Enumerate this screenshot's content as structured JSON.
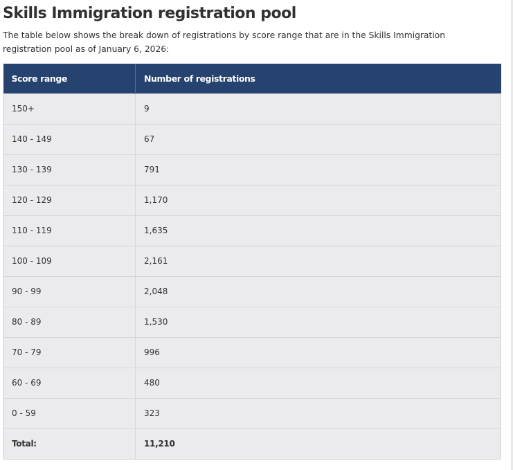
{
  "heading": "Skills Immigration registration pool",
  "intro": "The table below shows the break down of registrations by score range that are in the Skills Immigration registration pool as of January 6, 2026:",
  "table": {
    "headers": [
      "Score range",
      "Number of registrations"
    ],
    "rows": [
      [
        "150+",
        "9"
      ],
      [
        "140 - 149",
        "67"
      ],
      [
        "130 - 139",
        "791"
      ],
      [
        "120 - 129",
        "1,170"
      ],
      [
        "110 - 119",
        "1,635"
      ],
      [
        "100 - 109",
        "2,161"
      ],
      [
        "90 - 99",
        "2,048"
      ],
      [
        "80 - 89",
        "1,530"
      ],
      [
        "70 - 79",
        "996"
      ],
      [
        "60 - 69",
        "480"
      ],
      [
        "0 - 59",
        "323"
      ]
    ],
    "total": [
      "Total:",
      "11,210"
    ]
  },
  "colors": {
    "header_bg": "#26426f",
    "row_bg": "#ebebee",
    "text": "#313132"
  }
}
